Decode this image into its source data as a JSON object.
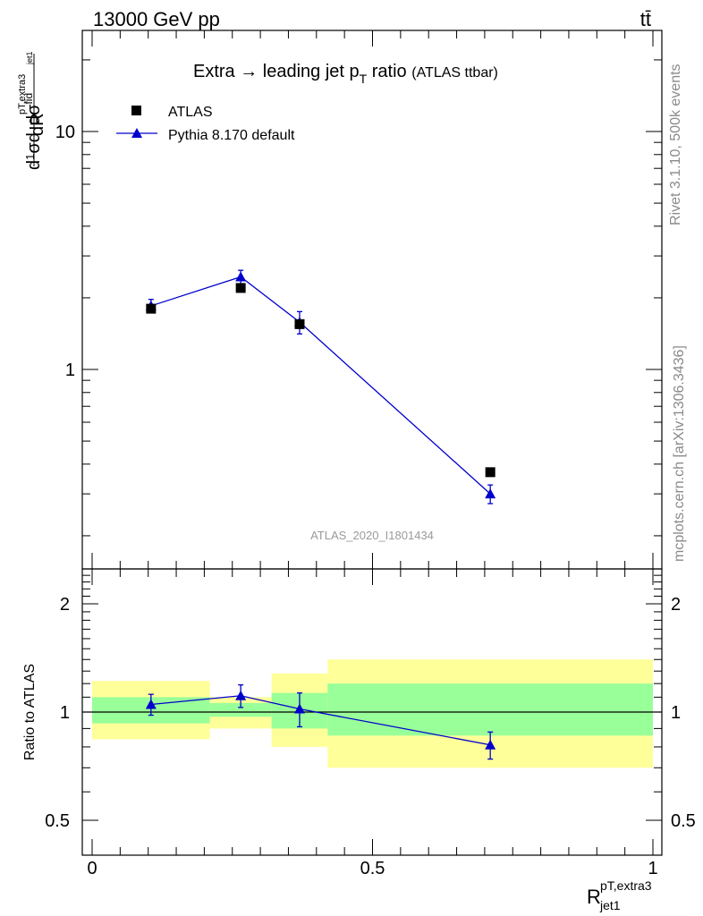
{
  "header": {
    "energy_label": "13000 GeV pp",
    "process_label": "tt̄"
  },
  "side_labels": {
    "rivet": "Rivet 3.1.10,  500k events",
    "mcplots": "mcplots.cern.ch [arXiv:1306.3436]"
  },
  "chart_data": [
    {
      "panel": "main",
      "type": "scatter",
      "title": "Extra → leading jet p_T ratio",
      "subtitle": "(ATLAS ttbar)",
      "watermark": "ATLAS_2020_I1801434",
      "ylabel": "dσ^fid/dR^pT,extra3_jet1 · 1/σ",
      "yscale": "log",
      "ylim": [
        0.2,
        25
      ],
      "xlim": [
        -0.02,
        1.02
      ],
      "yticks": [
        1,
        10
      ],
      "ytick_labels": [
        "1",
        "10"
      ],
      "legend_position": "top-left",
      "series": [
        {
          "name": "ATLAS",
          "marker": "square",
          "color": "#000000",
          "x": [
            0.105,
            0.265,
            0.37,
            0.71
          ],
          "y": [
            1.8,
            2.2,
            1.55,
            0.37
          ]
        },
        {
          "name": "Pythia 8.170 default",
          "marker": "triangle",
          "color": "#0000cc",
          "x": [
            0.105,
            0.265,
            0.37,
            0.71
          ],
          "y": [
            1.85,
            2.45,
            1.58,
            0.3
          ],
          "yerr_low": [
            0.12,
            0.16,
            0.17,
            0.027
          ],
          "yerr_high": [
            0.12,
            0.16,
            0.17,
            0.027
          ]
        }
      ]
    },
    {
      "panel": "ratio",
      "type": "line",
      "ylabel": "Ratio to ATLAS",
      "xlabel": "R^pT,extra3_jet1",
      "ylim": [
        0.4,
        2.5
      ],
      "xlim": [
        -0.02,
        1.02
      ],
      "yticks": [
        0.5,
        1,
        2
      ],
      "ytick_labels": [
        "0.5",
        "1",
        "2"
      ],
      "xticks": [
        0,
        0.5,
        1
      ],
      "xtick_labels": [
        "0",
        "0.5",
        "1"
      ],
      "bands": [
        {
          "x_low": 0.0,
          "x_high": 0.21,
          "inner": [
            0.93,
            1.1
          ],
          "outer": [
            0.84,
            1.22
          ]
        },
        {
          "x_low": 0.21,
          "x_high": 0.32,
          "inner": [
            0.97,
            1.06
          ],
          "outer": [
            0.9,
            1.1
          ]
        },
        {
          "x_low": 0.32,
          "x_high": 0.42,
          "inner": [
            0.9,
            1.13
          ],
          "outer": [
            0.8,
            1.28
          ]
        },
        {
          "x_low": 0.42,
          "x_high": 1.0,
          "inner": [
            0.86,
            1.2
          ],
          "outer": [
            0.7,
            1.4
          ]
        }
      ],
      "series": [
        {
          "name": "Pythia 8.170 default",
          "color": "#0000cc",
          "x": [
            0.105,
            0.265,
            0.37,
            0.71
          ],
          "y": [
            1.05,
            1.11,
            1.02,
            0.81
          ],
          "yerr_low": [
            0.07,
            0.08,
            0.11,
            0.07
          ],
          "yerr_high": [
            0.07,
            0.08,
            0.11,
            0.07
          ]
        }
      ]
    }
  ]
}
